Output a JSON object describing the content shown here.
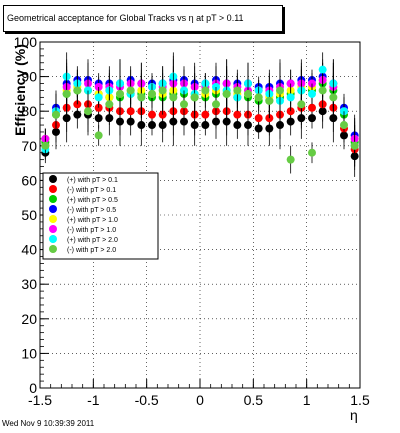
{
  "chart_data": {
    "type": "scatter",
    "title": "Geometrical acceptance for Global Tracks vs    η at pT > 0.11",
    "xlabel": "η",
    "ylabel": "Efficiency (%)",
    "xlim": [
      -1.5,
      1.5
    ],
    "ylim": [
      0,
      100
    ],
    "x_ticks": [
      "-1.5",
      "-1",
      "-0.5",
      "0",
      "0.5",
      "1",
      "1.5"
    ],
    "y_ticks": [
      "0",
      "10",
      "20",
      "30",
      "40",
      "50",
      "60",
      "70",
      "80",
      "90",
      "100"
    ],
    "grid": true,
    "legend_position": "left-middle",
    "series": [
      {
        "name": "(+) with pT > 0.1",
        "color": "#000000",
        "x": [
          -1.45,
          -1.35,
          -1.25,
          -1.15,
          -1.05,
          -0.95,
          -0.85,
          -0.75,
          -0.65,
          -0.55,
          -0.45,
          -0.35,
          -0.25,
          -0.15,
          -0.05,
          0.05,
          0.15,
          0.25,
          0.35,
          0.45,
          0.55,
          0.65,
          0.75,
          0.85,
          0.95,
          1.05,
          1.15,
          1.25,
          1.35,
          1.45
        ],
        "y": [
          68,
          74,
          78,
          79,
          79,
          78,
          78,
          77,
          77,
          76,
          76,
          76,
          77,
          77,
          76,
          76,
          77,
          77,
          76,
          76,
          75,
          75,
          76,
          77,
          78,
          78,
          80,
          78,
          73,
          67
        ]
      },
      {
        "name": "(-) with pT > 0.1",
        "color": "#ff0000",
        "x": [
          -1.45,
          -1.35,
          -1.25,
          -1.15,
          -1.05,
          -0.95,
          -0.85,
          -0.75,
          -0.65,
          -0.55,
          -0.45,
          -0.35,
          -0.25,
          -0.15,
          -0.05,
          0.05,
          0.15,
          0.25,
          0.35,
          0.45,
          0.55,
          0.65,
          0.75,
          0.85,
          0.95,
          1.05,
          1.15,
          1.25,
          1.35,
          1.45
        ],
        "y": [
          70,
          76,
          81,
          82,
          82,
          81,
          81,
          80,
          80,
          80,
          79,
          79,
          80,
          80,
          79,
          79,
          80,
          80,
          79,
          79,
          78,
          78,
          79,
          80,
          81,
          81,
          82,
          81,
          75,
          69
        ]
      },
      {
        "name": "(+) with pT > 0.5",
        "color": "#00cc00",
        "x": [
          -1.45,
          -1.35,
          -1.25,
          -1.15,
          -1.05,
          -0.95,
          -0.85,
          -0.75,
          -0.65,
          -0.55,
          -0.45,
          -0.35,
          -0.25,
          -0.15,
          -0.05,
          0.05,
          0.15,
          0.25,
          0.35,
          0.45,
          0.55,
          0.65,
          0.75,
          0.85,
          0.95,
          1.05,
          1.15,
          1.25,
          1.35,
          1.45
        ],
        "y": [
          71,
          79,
          85,
          86,
          86,
          85,
          84,
          84,
          85,
          85,
          84,
          84,
          85,
          85,
          84,
          84,
          85,
          85,
          84,
          84,
          83,
          83,
          84,
          85,
          86,
          86,
          88,
          86,
          79,
          71
        ]
      },
      {
        "name": "(-) with pT > 0.5",
        "color": "#0000ff",
        "x": [
          -1.45,
          -1.35,
          -1.25,
          -1.15,
          -1.05,
          -0.95,
          -0.85,
          -0.75,
          -0.65,
          -0.55,
          -0.45,
          -0.35,
          -0.25,
          -0.15,
          -0.05,
          0.05,
          0.15,
          0.25,
          0.35,
          0.45,
          0.55,
          0.65,
          0.75,
          0.85,
          0.95,
          1.05,
          1.15,
          1.25,
          1.35,
          1.45
        ],
        "y": [
          72,
          81,
          88,
          89,
          89,
          88,
          88,
          88,
          89,
          88,
          88,
          88,
          89,
          89,
          88,
          88,
          89,
          88,
          88,
          88,
          87,
          87,
          88,
          88,
          89,
          89,
          90,
          88,
          81,
          73
        ]
      },
      {
        "name": "(+) with pT > 1.0",
        "color": "#ffff00",
        "x": [
          -1.45,
          -1.35,
          -1.25,
          -1.15,
          -1.05,
          -0.95,
          -0.85,
          -0.75,
          -0.65,
          -0.55,
          -0.45,
          -0.35,
          -0.25,
          -0.15,
          -0.05,
          0.05,
          0.15,
          0.25,
          0.35,
          0.45,
          0.55,
          0.65,
          0.75,
          0.85,
          0.95,
          1.05,
          1.15,
          1.25,
          1.35,
          1.45
        ],
        "y": [
          72,
          80,
          86,
          87,
          86,
          85,
          84,
          85,
          86,
          86,
          85,
          85,
          86,
          86,
          85,
          85,
          86,
          86,
          85,
          85,
          84,
          84,
          85,
          86,
          87,
          87,
          89,
          87,
          80,
          72
        ]
      },
      {
        "name": "(-) with pT > 1.0",
        "color": "#ff00ff",
        "x": [
          -1.45,
          -1.35,
          -1.25,
          -1.15,
          -1.05,
          -0.95,
          -0.85,
          -0.75,
          -0.65,
          -0.55,
          -0.45,
          -0.35,
          -0.25,
          -0.15,
          -0.05,
          0.05,
          0.15,
          0.25,
          0.35,
          0.45,
          0.55,
          0.65,
          0.75,
          0.85,
          0.95,
          1.05,
          1.15,
          1.25,
          1.35,
          1.45
        ],
        "y": [
          72,
          80,
          87,
          88,
          88,
          87,
          87,
          87,
          88,
          88,
          87,
          87,
          88,
          88,
          87,
          87,
          88,
          88,
          87,
          86,
          86,
          86,
          87,
          88,
          88,
          88,
          89,
          87,
          80,
          72
        ]
      },
      {
        "name": "(+) with pT > 2.0",
        "color": "#00ffff",
        "x": [
          -1.45,
          -1.35,
          -1.25,
          -1.15,
          -1.05,
          -0.95,
          -0.85,
          -0.75,
          -0.65,
          -0.55,
          -0.45,
          -0.35,
          -0.25,
          -0.15,
          -0.05,
          0.05,
          0.15,
          0.25,
          0.35,
          0.45,
          0.55,
          0.65,
          0.75,
          0.85,
          0.95,
          1.05,
          1.15,
          1.25,
          1.35,
          1.45
        ],
        "y": [
          69,
          80,
          90,
          88,
          86,
          84,
          86,
          88,
          85,
          84,
          87,
          88,
          90,
          86,
          85,
          88,
          87,
          86,
          84,
          88,
          86,
          85,
          83,
          84,
          86,
          85,
          92,
          88,
          80,
          70
        ]
      },
      {
        "name": "(-) with pT > 2.0",
        "color": "#66cc44",
        "x": [
          -1.45,
          -1.35,
          -1.25,
          -1.15,
          -1.05,
          -0.95,
          -0.85,
          -0.75,
          -0.65,
          -0.55,
          -0.45,
          -0.35,
          -0.25,
          -0.15,
          -0.05,
          0.05,
          0.15,
          0.25,
          0.35,
          0.45,
          0.55,
          0.65,
          0.75,
          0.85,
          0.95,
          1.05,
          1.15,
          1.25,
          1.35,
          1.45
        ],
        "y": [
          70,
          79,
          85,
          86,
          80,
          73,
          82,
          85,
          86,
          84,
          85,
          86,
          84,
          82,
          84,
          86,
          82,
          85,
          86,
          85,
          84,
          83,
          86,
          66,
          82,
          68,
          86,
          84,
          76,
          70
        ]
      }
    ]
  },
  "footer": {
    "timestamp": "Wed Nov  9 10:39:39 2011"
  }
}
